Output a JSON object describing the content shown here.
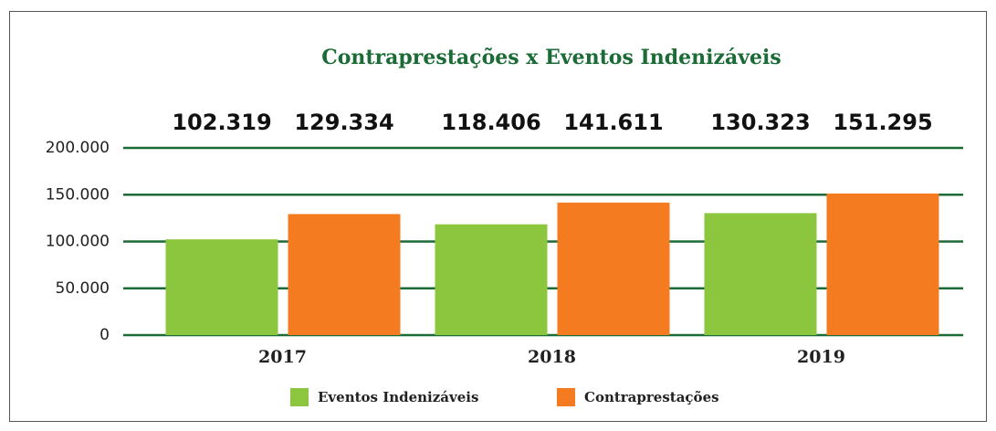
{
  "chart_data": {
    "type": "bar",
    "title": "Contraprestações x Eventos Indenizáveis",
    "categories": [
      "2017",
      "2018",
      "2019"
    ],
    "series": [
      {
        "name": "Eventos Indenizáveis",
        "color": "#8cc63f",
        "values": [
          102319,
          118406,
          130323
        ],
        "value_labels": [
          "102.319",
          "118.406",
          "130.323"
        ]
      },
      {
        "name": "Contraprestações",
        "color": "#f47b20",
        "values": [
          129334,
          141611,
          151295
        ],
        "value_labels": [
          "129.334",
          "141.611",
          "151.295"
        ]
      }
    ],
    "ylim": [
      0,
      200000
    ],
    "yticks": [
      0,
      {
        "value": 50000,
        "label": "50.000"
      },
      {
        "value": 100000,
        "label": "100.000"
      },
      {
        "value": 150000,
        "label": "150.000"
      },
      {
        "value": 200000,
        "label": "200.000"
      }
    ],
    "grid": true,
    "legend": "bottom"
  }
}
